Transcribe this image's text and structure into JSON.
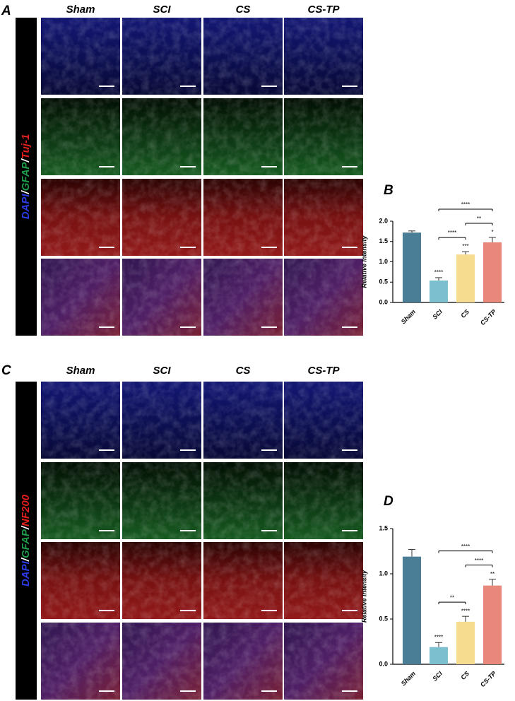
{
  "panels": [
    {
      "label": "A",
      "columns": [
        "Sham",
        "SCI",
        "CS",
        "CS-TP"
      ],
      "stain_label": [
        "DAPI",
        "/",
        "GFAP",
        "/",
        "Tuj-1"
      ],
      "stain_colors": [
        "#2b3be8",
        "#ffffff",
        "#1c9e4a",
        "#ffffff",
        "#e3201c"
      ]
    },
    {
      "label": "C",
      "columns": [
        "Sham",
        "SCI",
        "CS",
        "CS-TP"
      ],
      "stain_label": [
        "DAPI",
        "/",
        "GFAP",
        "/",
        "NF200"
      ],
      "stain_colors": [
        "#2b3be8",
        "#ffffff",
        "#1c9e4a",
        "#ffffff",
        "#e3201c"
      ]
    }
  ],
  "chart_data": [
    {
      "type": "bar",
      "panel_label": "B",
      "ylabel": "Relative intensity",
      "categories": [
        "Sham",
        "SCI",
        "CS",
        "CS-TP"
      ],
      "values": [
        1.72,
        0.54,
        1.18,
        1.48
      ],
      "errors": [
        0.04,
        0.07,
        0.07,
        0.12
      ],
      "colors": [
        "#4a7d96",
        "#7cc0d0",
        "#f6dc8f",
        "#e8887a"
      ],
      "star_labels": [
        null,
        "****",
        "***",
        "*"
      ],
      "comparisons": [
        {
          "from": "SCI",
          "to": "CS-TP",
          "label": "****"
        },
        {
          "from": "CS",
          "to": "CS-TP",
          "label": "**"
        },
        {
          "from": "SCI",
          "to": "CS",
          "label": "****"
        }
      ],
      "ylim": [
        0,
        2.0
      ],
      "yticks": [
        {
          "value": 0,
          "label": "0.0"
        },
        {
          "value": 0.5,
          "label": "0.5"
        },
        {
          "value": 1,
          "label": "1.0"
        },
        {
          "value": 1.5,
          "label": "1.5"
        },
        {
          "value": 2,
          "label": "2.0"
        }
      ]
    },
    {
      "type": "bar",
      "panel_label": "D",
      "ylabel": "Relative intensity",
      "categories": [
        "Sham",
        "SCI",
        "CS",
        "CS-TP"
      ],
      "values": [
        1.19,
        0.19,
        0.47,
        0.87
      ],
      "errors": [
        0.08,
        0.05,
        0.06,
        0.07
      ],
      "colors": [
        "#4a7d96",
        "#7cc0d0",
        "#f6dc8f",
        "#e8887a"
      ],
      "star_labels": [
        null,
        "****",
        "****",
        "**"
      ],
      "comparisons": [
        {
          "from": "SCI",
          "to": "CS-TP",
          "label": "****"
        },
        {
          "from": "CS",
          "to": "CS-TP",
          "label": "****"
        },
        {
          "from": "SCI",
          "to": "CS",
          "label": "**"
        }
      ],
      "ylim": [
        0,
        1.5
      ],
      "yticks": [
        {
          "value": 0,
          "label": "0.0"
        },
        {
          "value": 0.5,
          "label": "0.5"
        },
        {
          "value": 1,
          "label": "1.0"
        },
        {
          "value": 1.5,
          "label": "1.5"
        }
      ]
    }
  ]
}
